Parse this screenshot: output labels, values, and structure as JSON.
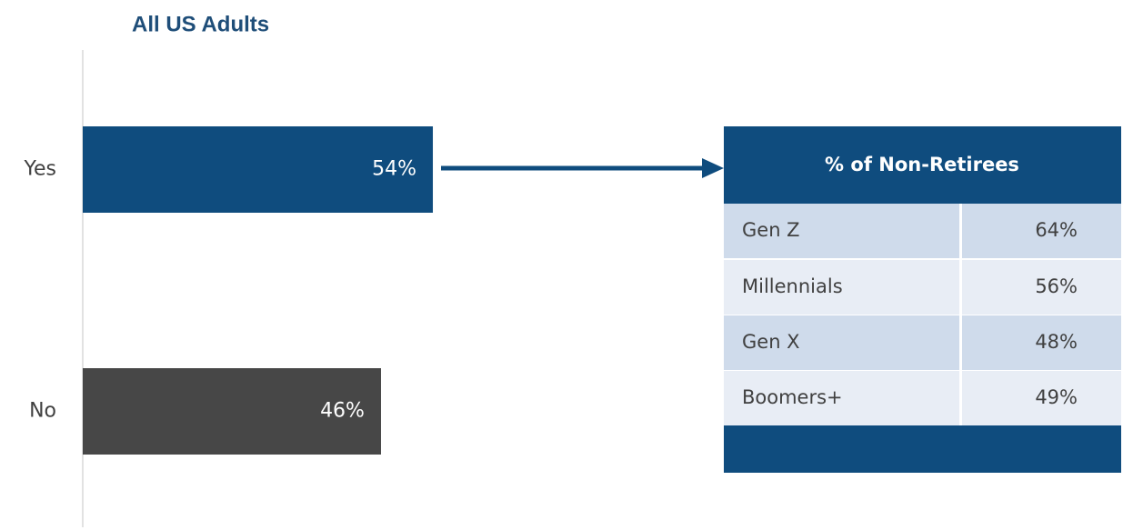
{
  "chart_data": {
    "type": "bar",
    "title": "All US Adults",
    "categories": [
      "Yes",
      "No"
    ],
    "values": [
      54,
      46
    ],
    "value_labels": [
      "54%",
      "46%"
    ],
    "colors": [
      "#0f4c7e",
      "#474747"
    ]
  },
  "table": {
    "title": "% of Non-Retirees",
    "rows": [
      [
        "Gen Z",
        "64%"
      ],
      [
        "Millennials",
        "56%"
      ],
      [
        "Gen X",
        "48%"
      ],
      [
        "Boomers+",
        "49%"
      ]
    ]
  }
}
